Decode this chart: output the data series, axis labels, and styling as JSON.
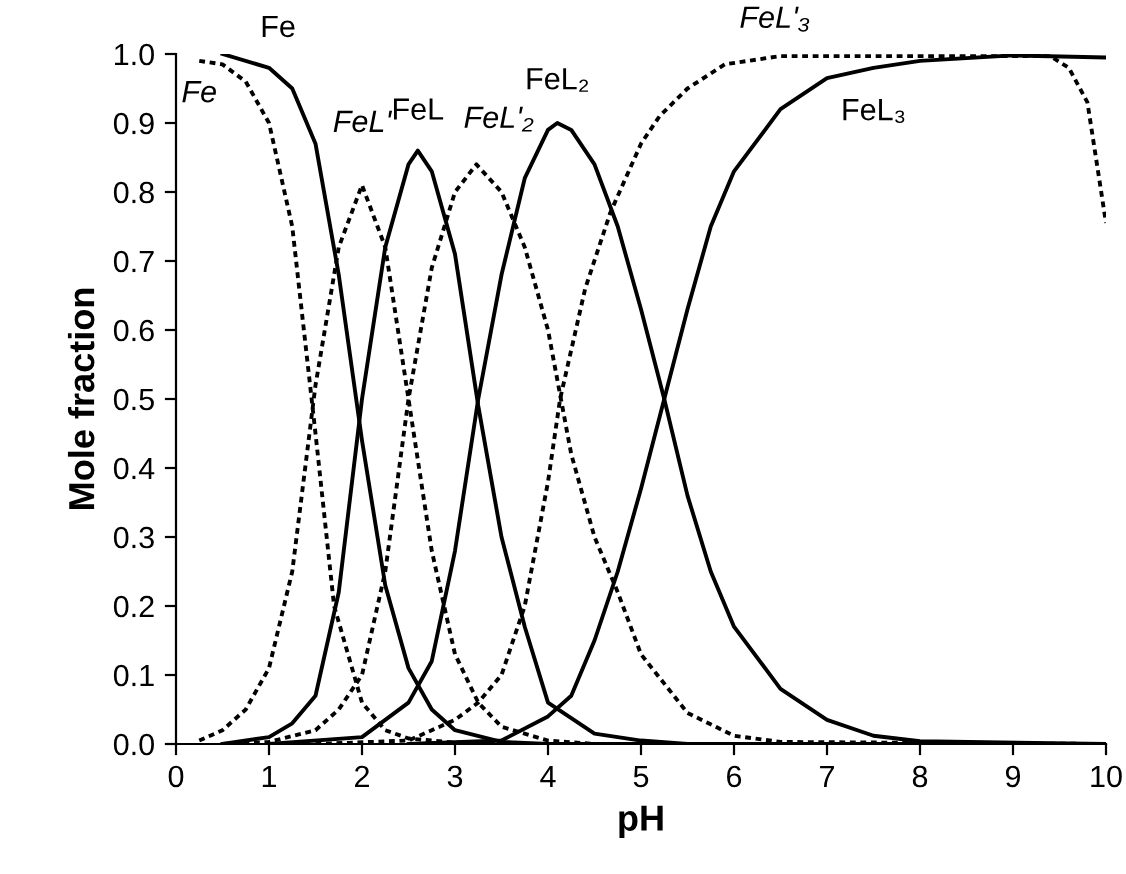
{
  "chart_data": {
    "type": "line",
    "xlabel": "pH",
    "ylabel": "Mole fraction",
    "xlim": [
      0,
      10
    ],
    "ylim": [
      0,
      1
    ],
    "xticks": [
      0,
      1,
      2,
      3,
      4,
      5,
      6,
      7,
      8,
      9,
      10
    ],
    "yticks": [
      {
        "value": 0,
        "label": "0.0"
      },
      {
        "value": 0.1,
        "label": "0.1"
      },
      {
        "value": 0.2,
        "label": "0.2"
      },
      {
        "value": 0.3,
        "label": "0.3"
      },
      {
        "value": 0.4,
        "label": "0.4"
      },
      {
        "value": 0.5,
        "label": "0.5"
      },
      {
        "value": 0.6,
        "label": "0.6"
      },
      {
        "value": 0.7,
        "label": "0.7"
      },
      {
        "value": 0.8,
        "label": "0.8"
      },
      {
        "value": 0.9,
        "label": "0.9"
      },
      {
        "value": 1,
        "label": "1.0"
      }
    ],
    "grid": false,
    "legend": false,
    "series": [
      {
        "color": "#000000",
        "line_style": "solid",
        "x": [
          0.5,
          1.0,
          1.25,
          1.5,
          1.75,
          2.0,
          2.25,
          2.5,
          2.75,
          3.0,
          3.5,
          4.0,
          10
        ],
        "values": [
          1.0,
          0.98,
          0.95,
          0.87,
          0.68,
          0.44,
          0.23,
          0.11,
          0.05,
          0.02,
          0.003,
          0,
          0
        ]
      },
      {
        "color": "#000000",
        "line_style": "dotted",
        "x": [
          0.25,
          0.5,
          0.75,
          1.0,
          1.25,
          1.5,
          1.7,
          2.0,
          2.25,
          2.5,
          3.0,
          3.5,
          10
        ],
        "values": [
          0.99,
          0.985,
          0.96,
          0.9,
          0.75,
          0.45,
          0.2,
          0.06,
          0.02,
          0.008,
          0.002,
          0,
          0
        ]
      },
      {
        "color": "#000000",
        "line_style": "dotted",
        "x": [
          0.25,
          0.5,
          0.75,
          1.0,
          1.25,
          1.5,
          1.75,
          2.0,
          2.25,
          2.5,
          2.75,
          3.0,
          3.25,
          3.5,
          4.0,
          4.5,
          10
        ],
        "values": [
          0.005,
          0.02,
          0.05,
          0.11,
          0.25,
          0.52,
          0.72,
          0.81,
          0.72,
          0.5,
          0.28,
          0.13,
          0.06,
          0.025,
          0.005,
          0,
          0
        ]
      },
      {
        "color": "#000000",
        "line_style": "solid",
        "x": [
          0.5,
          1.0,
          1.25,
          1.5,
          1.75,
          2.0,
          2.25,
          2.5,
          2.6,
          2.75,
          3.0,
          3.25,
          3.5,
          3.75,
          4.0,
          4.5,
          5.0,
          5.5,
          10
        ],
        "values": [
          0,
          0.01,
          0.03,
          0.07,
          0.22,
          0.5,
          0.72,
          0.84,
          0.86,
          0.83,
          0.71,
          0.49,
          0.3,
          0.17,
          0.06,
          0.015,
          0.005,
          0,
          0
        ]
      },
      {
        "color": "#000000",
        "line_style": "dotted",
        "x": [
          0.5,
          1.0,
          1.5,
          1.75,
          2.0,
          2.25,
          2.5,
          2.75,
          3.0,
          3.23,
          3.5,
          3.75,
          4.0,
          4.25,
          4.5,
          4.75,
          5.0,
          5.5,
          6.0,
          6.5,
          10
        ],
        "values": [
          0,
          0.003,
          0.02,
          0.05,
          0.1,
          0.25,
          0.5,
          0.69,
          0.8,
          0.84,
          0.8,
          0.72,
          0.6,
          0.42,
          0.3,
          0.22,
          0.13,
          0.045,
          0.012,
          0.003,
          0
        ]
      },
      {
        "color": "#000000",
        "line_style": "solid",
        "x": [
          1.0,
          2.0,
          2.5,
          2.75,
          3.0,
          3.25,
          3.5,
          3.75,
          4.0,
          4.1,
          4.25,
          4.5,
          4.75,
          5.0,
          5.25,
          5.5,
          5.75,
          6.0,
          6.5,
          7.0,
          7.5,
          8.0,
          10
        ],
        "values": [
          0,
          0.01,
          0.06,
          0.12,
          0.28,
          0.5,
          0.68,
          0.82,
          0.89,
          0.9,
          0.89,
          0.84,
          0.75,
          0.63,
          0.5,
          0.36,
          0.25,
          0.17,
          0.08,
          0.035,
          0.012,
          0.004,
          0
        ]
      },
      {
        "color": "#000000",
        "line_style": "dotted",
        "x": [
          1.5,
          2.5,
          3.0,
          3.25,
          3.5,
          3.75,
          4.0,
          4.13,
          4.4,
          4.67,
          5.0,
          5.2,
          5.5,
          5.9,
          6.5,
          9.4,
          9.6,
          9.8,
          10
        ],
        "values": [
          0,
          0.005,
          0.035,
          0.06,
          0.1,
          0.2,
          0.38,
          0.5,
          0.66,
          0.77,
          0.87,
          0.91,
          0.95,
          0.985,
          0.997,
          0.997,
          0.98,
          0.93,
          0.755
        ]
      },
      {
        "color": "#000000",
        "line_style": "solid",
        "x": [
          2.5,
          3.5,
          4.0,
          4.25,
          4.5,
          4.75,
          5.0,
          5.25,
          5.5,
          5.75,
          6.0,
          6.5,
          7.0,
          7.5,
          8.0,
          9.0,
          10
        ],
        "values": [
          0,
          0.005,
          0.04,
          0.07,
          0.15,
          0.25,
          0.37,
          0.5,
          0.63,
          0.75,
          0.83,
          0.92,
          0.965,
          0.98,
          0.99,
          0.998,
          0.995
        ]
      }
    ],
    "annotations": [
      {
        "text": "Fe",
        "x": 0.5,
        "y": 1.0
      },
      {
        "text": "Fe",
        "x": 0.25,
        "y": 0.99
      },
      {
        "text": "FeL'",
        "x": 2.0,
        "y": 0.81
      },
      {
        "text": "FeL",
        "x": 2.6,
        "y": 0.86
      },
      {
        "text": "FeL'₂",
        "x": 3.23,
        "y": 0.84
      },
      {
        "text": "FeL₂",
        "x": 4.1,
        "y": 0.9
      },
      {
        "text": "FeL'₃",
        "x": 5.9,
        "y": 0.985
      },
      {
        "text": "FeL₃",
        "x": 7.5,
        "y": 0.98
      }
    ]
  }
}
